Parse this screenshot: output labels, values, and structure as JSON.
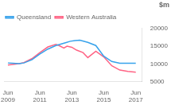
{
  "chart_data": {
    "type": "line",
    "ylabel": "$m",
    "xlim": [
      -0.2,
      8.4
    ],
    "xticks": [
      {
        "value": 0,
        "label": "Jun\n2009"
      },
      {
        "value": 2,
        "label": "Jun\n2011"
      },
      {
        "value": 4,
        "label": "Jun\n2013"
      },
      {
        "value": 6,
        "label": "Jun\n2015"
      },
      {
        "value": 8,
        "label": "Jun\n2017"
      }
    ],
    "ylim": [
      5000,
      20000
    ],
    "yticks": [
      5000,
      10000,
      15000,
      20000
    ],
    "grid": false,
    "legend": "upper left",
    "series": [
      {
        "name": "Queensland",
        "x": [
          0,
          0.3,
          0.7,
          1.0,
          1.5,
          2.0,
          2.5,
          3.0,
          3.3,
          3.6,
          3.9,
          4.2,
          4.5,
          5.0,
          5.5,
          6.0,
          6.5,
          7.0,
          7.5,
          8.0
        ],
        "values": [
          10300,
          10200,
          10100,
          10300,
          11200,
          12800,
          14200,
          15200,
          15600,
          16000,
          16400,
          16600,
          16700,
          16100,
          15200,
          12200,
          10700,
          10200,
          10200,
          10200
        ]
      },
      {
        "name": "Western Australia",
        "x": [
          0,
          0.3,
          0.7,
          1.0,
          1.5,
          2.0,
          2.5,
          3.0,
          3.2,
          3.5,
          3.7,
          4.0,
          4.3,
          4.7,
          5.0,
          5.5,
          6.0,
          6.5,
          7.0,
          7.5,
          8.0
        ],
        "values": [
          9700,
          9900,
          10100,
          10400,
          11500,
          13200,
          14800,
          15500,
          15200,
          14500,
          15000,
          14700,
          13900,
          13200,
          11800,
          13600,
          12000,
          9500,
          8300,
          7900,
          7700
        ]
      }
    ]
  }
}
